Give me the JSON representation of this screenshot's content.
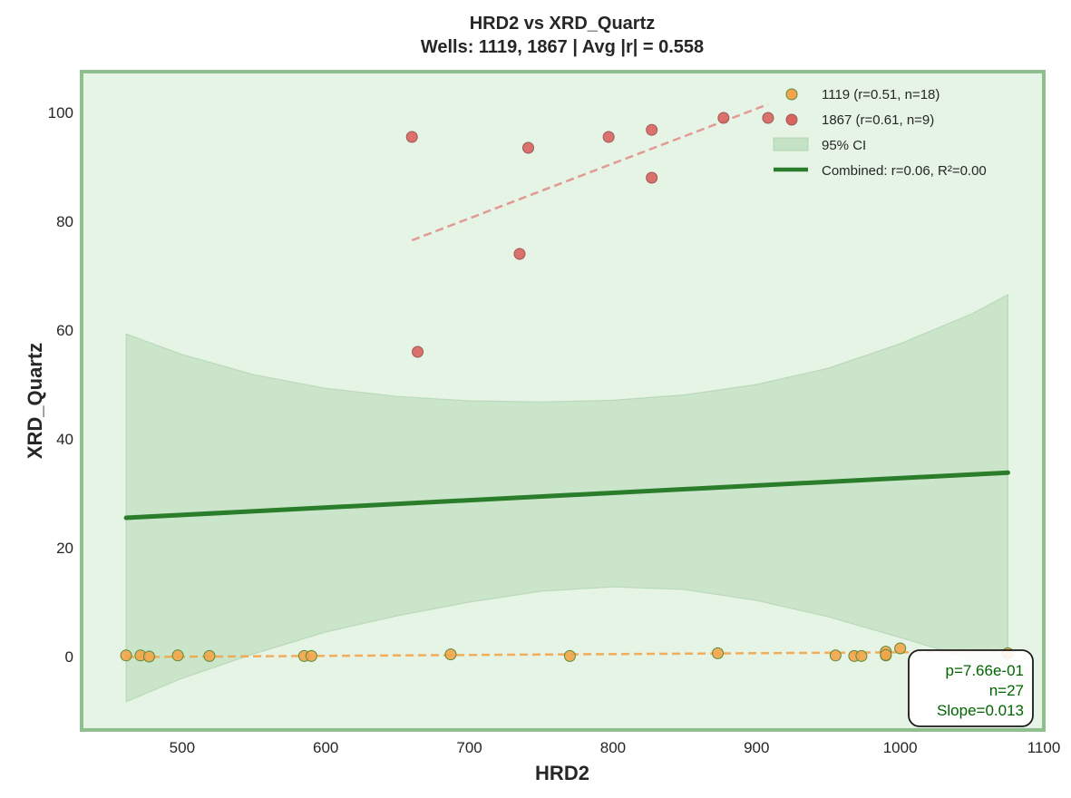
{
  "chart_data": {
    "type": "scatter",
    "title": "HRD2 vs XRD_Quartz",
    "subtitle": "Wells: 1119, 1867 | Avg |r| = 0.558",
    "xlabel": "HRD2",
    "ylabel": "XRD_Quartz",
    "xlim": [
      430,
      1100
    ],
    "ylim": [
      -13.5,
      107.5
    ],
    "x_ticks": [
      500,
      600,
      700,
      800,
      900,
      1000,
      1100
    ],
    "y_ticks": [
      0,
      20,
      40,
      60,
      80,
      100
    ],
    "x_tick_labels": [
      "500",
      "600",
      "700",
      "800",
      "900",
      "1000",
      "1100"
    ],
    "y_tick_labels": [
      "0",
      "20",
      "40",
      "60",
      "80",
      "100"
    ],
    "grid": false,
    "legend_position": "top-right",
    "colors": {
      "background": "#e6f4e6",
      "frame": "#8fbf8f",
      "ci_fill": "#a6cfa6",
      "combined_line": "#2a7d2a",
      "stats_text": "#006400"
    },
    "series": [
      {
        "name": "1119 (r=0.51, n=18)",
        "color": "#f2a54a",
        "edge": "#5a8a3a",
        "points": [
          {
            "x": 461,
            "y": 0.2
          },
          {
            "x": 471,
            "y": 0.2
          },
          {
            "x": 477,
            "y": 0.0
          },
          {
            "x": 497,
            "y": 0.2
          },
          {
            "x": 519,
            "y": 0.1
          },
          {
            "x": 585,
            "y": 0.1
          },
          {
            "x": 590,
            "y": 0.1
          },
          {
            "x": 687,
            "y": 0.4
          },
          {
            "x": 770,
            "y": 0.1
          },
          {
            "x": 873,
            "y": 0.6
          },
          {
            "x": 955,
            "y": 0.2
          },
          {
            "x": 968,
            "y": 0.1
          },
          {
            "x": 973,
            "y": 0.1
          },
          {
            "x": 990,
            "y": 0.2
          },
          {
            "x": 990,
            "y": 0.9
          },
          {
            "x": 990,
            "y": 0.3
          },
          {
            "x": 1000,
            "y": 1.5
          },
          {
            "x": 1075,
            "y": 0.6
          }
        ],
        "trend": {
          "x": [
            461,
            1075
          ],
          "y": [
            -0.1,
            0.9
          ],
          "color": "#f2a54a"
        }
      },
      {
        "name": "1867 (r=0.61, n=9)",
        "color": "#d9635e",
        "edge": "#9a5a5a",
        "points": [
          {
            "x": 660,
            "y": 95.5
          },
          {
            "x": 664,
            "y": 56.0
          },
          {
            "x": 735,
            "y": 74.0
          },
          {
            "x": 741,
            "y": 93.5
          },
          {
            "x": 797,
            "y": 95.5
          },
          {
            "x": 827,
            "y": 96.8
          },
          {
            "x": 827,
            "y": 88.0
          },
          {
            "x": 877,
            "y": 99.0
          },
          {
            "x": 908,
            "y": 99.0
          }
        ],
        "trend": {
          "x": [
            660,
            908
          ],
          "y": [
            76.5,
            101.5
          ],
          "color": "#e0908b"
        }
      }
    ],
    "combined": {
      "name": "Combined: r=0.06, R²=0.00",
      "x": [
        461,
        1075
      ],
      "y": [
        25.5,
        33.8
      ]
    },
    "ci": {
      "name": "95% CI",
      "x": [
        461,
        500,
        550,
        600,
        650,
        700,
        750,
        800,
        850,
        900,
        950,
        1000,
        1050,
        1075
      ],
      "upper": [
        59.3,
        55.5,
        51.8,
        49.3,
        47.8,
        47.0,
        46.8,
        47.1,
        48.1,
        50.0,
        53.0,
        57.5,
        63.0,
        66.5
      ],
      "lower": [
        -8.3,
        -4.0,
        0.5,
        4.5,
        7.5,
        10.0,
        12.0,
        12.8,
        12.3,
        10.3,
        7.3,
        3.5,
        -0.5,
        -1.8
      ]
    },
    "stats": {
      "p": "p=7.66e-01",
      "n": "n=27",
      "slope": "Slope=0.013"
    }
  }
}
